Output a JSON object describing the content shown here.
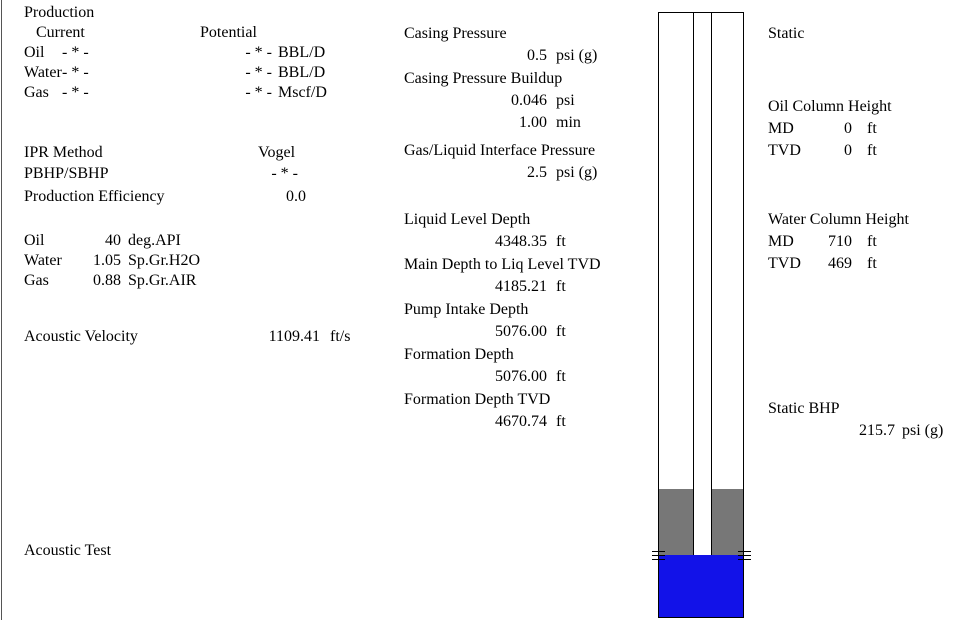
{
  "production": {
    "title": "Production",
    "current_header": "Current",
    "potential_header": "Potential",
    "rows": [
      {
        "label": "Oil",
        "current": "- * -",
        "potential": "- * -",
        "unit": "BBL/D"
      },
      {
        "label": "Water",
        "current": "- * -",
        "potential": "- * -",
        "unit": "BBL/D"
      },
      {
        "label": "Gas",
        "current": "- * -",
        "potential": "- * -",
        "unit": "Mscf/D"
      }
    ]
  },
  "ipr": {
    "method_label": "IPR Method",
    "method": "Vogel",
    "ratio_label": "PBHP/SBHP",
    "ratio": "- * -",
    "efficiency_label": "Production Efficiency",
    "efficiency": "0.0"
  },
  "fluids": [
    {
      "label": "Oil",
      "value": "40",
      "unit": "deg.API"
    },
    {
      "label": "Water",
      "value": "1.05",
      "unit": "Sp.Gr.H2O"
    },
    {
      "label": "Gas",
      "value": "0.88",
      "unit": "Sp.Gr.AIR"
    }
  ],
  "acoustic_velocity": {
    "label": "Acoustic Velocity",
    "value": "1109.41",
    "unit": "ft/s"
  },
  "acoustic_test": "Acoustic Test",
  "middle": [
    {
      "label": "Casing Pressure",
      "lines": [
        {
          "value": "0.5",
          "unit": "psi (g)"
        }
      ]
    },
    {
      "label": "Casing Pressure Buildup",
      "lines": [
        {
          "value": "0.046",
          "unit": "psi"
        },
        {
          "value": "1.00",
          "unit": "min"
        }
      ]
    },
    {
      "label": "Gas/Liquid Interface Pressure",
      "lines": [
        {
          "value": "2.5",
          "unit": "psi (g)"
        }
      ]
    },
    {
      "label": "Liquid Level Depth",
      "lines": [
        {
          "value": "4348.35",
          "unit": "ft"
        }
      ]
    },
    {
      "label": "Main Depth to Liq Level TVD",
      "lines": [
        {
          "value": "4185.21",
          "unit": "ft"
        }
      ]
    },
    {
      "label": "Pump Intake Depth",
      "lines": [
        {
          "value": "5076.00",
          "unit": "ft"
        }
      ]
    },
    {
      "label": "Formation Depth",
      "lines": [
        {
          "value": "5076.00",
          "unit": "ft"
        }
      ]
    },
    {
      "label": "Formation Depth TVD",
      "lines": [
        {
          "value": "4670.74",
          "unit": "ft"
        }
      ]
    }
  ],
  "static": {
    "title": "Static",
    "oil_column": {
      "title": "Oil Column Height",
      "rows": [
        {
          "label": "MD",
          "value": "0",
          "unit": "ft"
        },
        {
          "label": "TVD",
          "value": "0",
          "unit": "ft"
        }
      ]
    },
    "water_column": {
      "title": "Water Column Height",
      "rows": [
        {
          "label": "MD",
          "value": "710",
          "unit": "ft"
        },
        {
          "label": "TVD",
          "value": "469",
          "unit": "ft"
        }
      ]
    },
    "bhp": {
      "title": "Static BHP",
      "value": "215.7",
      "unit": "psi (g)"
    }
  }
}
